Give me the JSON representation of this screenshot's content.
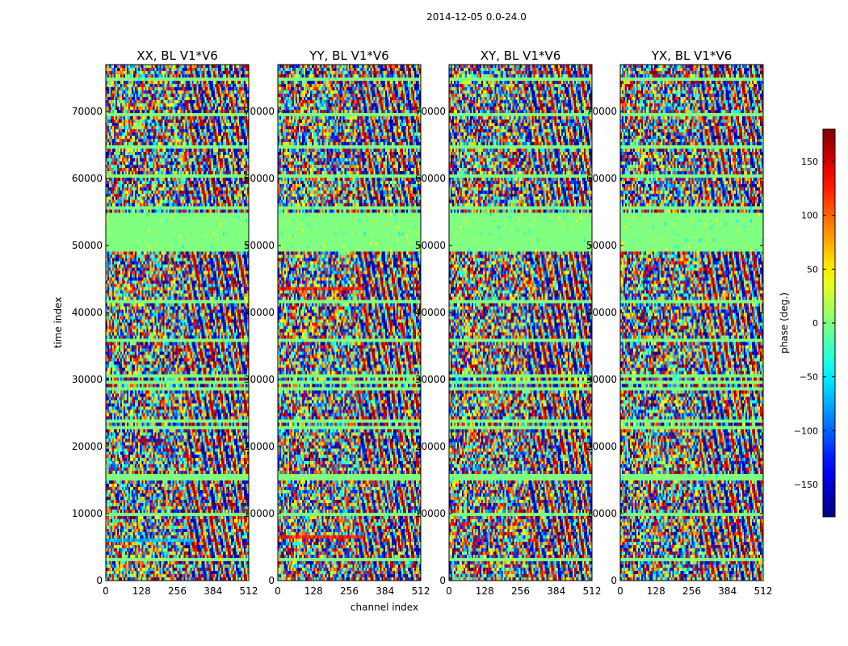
{
  "chart_data": {
    "type": "heatmap",
    "suptitle": "2014-12-05 0.0-24.0",
    "xlabel": "channel index",
    "ylabel": "time index",
    "xlim": [
      0,
      512
    ],
    "ylim": [
      0,
      77000
    ],
    "x_ticks": [
      0,
      128,
      256,
      384,
      512
    ],
    "y_ticks": [
      0,
      10000,
      20000,
      30000,
      40000,
      50000,
      60000,
      70000
    ],
    "panels": [
      {
        "title": "XX, BL V1*V6",
        "pol": "XX"
      },
      {
        "title": "YY, BL V1*V6",
        "pol": "YY"
      },
      {
        "title": "XY, BL V1*V6",
        "pol": "XY"
      },
      {
        "title": "YX, BL V1*V6",
        "pol": "YX"
      }
    ],
    "colorbar": {
      "label": "phase (deg.)",
      "range": [
        -180,
        180
      ],
      "ticks": [
        -150,
        -100,
        -50,
        0,
        50,
        100,
        150
      ],
      "colormap": "jet"
    },
    "flagged_time_ranges": [
      [
        49500,
        55000
      ]
    ]
  }
}
